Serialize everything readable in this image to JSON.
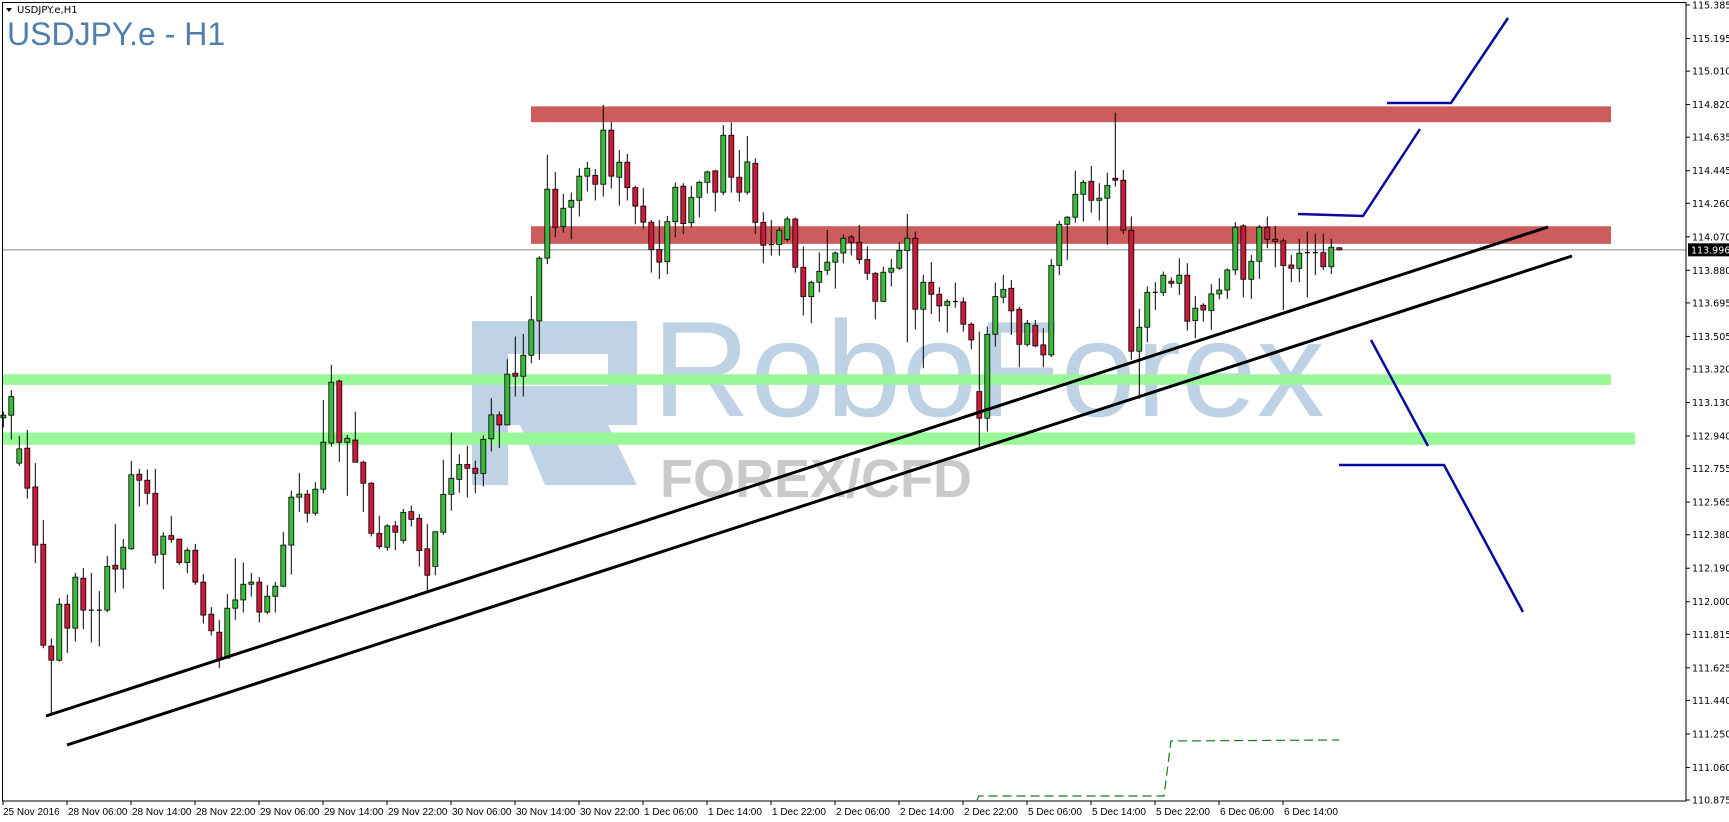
{
  "header": {
    "symbol_label": "USDJPY.e,H1",
    "title": "USDJPY.e - H1"
  },
  "watermark": {
    "brand": "RoboForex",
    "sub": "FOREX/CFD"
  },
  "colors": {
    "bull": "#3cb83c",
    "bear": "#cc1a3a",
    "resistance_zone": "#cd5c5c",
    "support_zone": "#98f898",
    "trendline": "#000000",
    "projection": "#0a0aa0",
    "dashed_indicator": "#1a7a1a",
    "current_price_line": "#7f8a99"
  },
  "chart_data": {
    "type": "candlestick",
    "symbol": "USDJPY.e",
    "timeframe": "H1",
    "current_price": "113.996",
    "y_ticks": [
      "115.385",
      "115.195",
      "115.010",
      "114.820",
      "114.635",
      "114.445",
      "114.260",
      "114.070",
      "113.880",
      "113.695",
      "113.505",
      "113.320",
      "113.130",
      "112.940",
      "112.755",
      "112.565",
      "112.380",
      "112.190",
      "112.000",
      "111.815",
      "111.625",
      "111.440",
      "111.250",
      "111.060",
      "110.875"
    ],
    "ylim": [
      110.875,
      115.385
    ],
    "x_ticks": [
      "25 Nov 2016",
      "28 Nov 06:00",
      "28 Nov 14:00",
      "28 Nov 22:00",
      "29 Nov 06:00",
      "29 Nov 14:00",
      "29 Nov 22:00",
      "30 Nov 06:00",
      "30 Nov 14:00",
      "30 Nov 22:00",
      "1 Dec 06:00",
      "1 Dec 14:00",
      "1 Dec 22:00",
      "2 Dec 06:00",
      "2 Dec 14:00",
      "2 Dec 22:00",
      "5 Dec 06:00",
      "5 Dec 14:00",
      "5 Dec 22:00",
      "6 Dec 06:00",
      "6 Dec 14:00"
    ],
    "zones": [
      {
        "kind": "resistance",
        "from": 114.72,
        "to": 114.81
      },
      {
        "kind": "resistance",
        "from": 114.03,
        "to": 114.13
      },
      {
        "kind": "support",
        "from": 113.23,
        "to": 113.29
      },
      {
        "kind": "support",
        "from": 112.89,
        "to": 112.96
      }
    ],
    "ohlc": [
      [
        113.043,
        113.079,
        112.99,
        113.058
      ],
      [
        113.058,
        113.2,
        112.92,
        113.164
      ],
      [
        112.786,
        112.94,
        112.77,
        112.867
      ],
      [
        112.871,
        112.975,
        112.585,
        112.644
      ],
      [
        112.651,
        112.786,
        112.22,
        112.321
      ],
      [
        112.326,
        112.464,
        111.736,
        111.753
      ],
      [
        111.748,
        111.79,
        111.358,
        111.668
      ],
      [
        111.668,
        112.02,
        111.66,
        111.986
      ],
      [
        111.986,
        112.04,
        111.71,
        111.85
      ],
      [
        111.85,
        112.162,
        111.774,
        112.139
      ],
      [
        112.133,
        112.19,
        111.844,
        111.952
      ],
      [
        111.952,
        112.162,
        111.769,
        111.952
      ],
      [
        111.952,
        112.06,
        111.746,
        111.952
      ],
      [
        111.952,
        112.26,
        111.94,
        112.2
      ],
      [
        112.207,
        112.441,
        112.052,
        112.185
      ],
      [
        112.185,
        112.355,
        112.075,
        112.309
      ],
      [
        112.3,
        112.799,
        112.294,
        112.72
      ],
      [
        112.723,
        112.753,
        112.54,
        112.689
      ],
      [
        112.689,
        112.75,
        112.551,
        112.615
      ],
      [
        112.615,
        112.753,
        112.216,
        112.264
      ],
      [
        112.269,
        112.394,
        112.071,
        112.372
      ],
      [
        112.375,
        112.487,
        112.334,
        112.353
      ],
      [
        112.355,
        112.355,
        112.209,
        112.222
      ],
      [
        112.222,
        112.307,
        112.162,
        112.292
      ],
      [
        112.292,
        112.328,
        112.096,
        112.111
      ],
      [
        112.111,
        112.156,
        111.876,
        111.924
      ],
      [
        111.929,
        111.969,
        111.808,
        111.835
      ],
      [
        111.827,
        111.897,
        111.623,
        111.674
      ],
      [
        111.68,
        112.043,
        111.68,
        111.963
      ],
      [
        111.963,
        112.247,
        111.897,
        112.01
      ],
      [
        112.01,
        112.222,
        111.939,
        112.099
      ],
      [
        112.099,
        112.162,
        112.029,
        112.111
      ],
      [
        112.111,
        112.139,
        111.882,
        111.941
      ],
      [
        111.941,
        112.094,
        111.929,
        112.031
      ],
      [
        112.031,
        112.113,
        111.939,
        112.088
      ],
      [
        112.088,
        112.396,
        112.082,
        112.321
      ],
      [
        112.321,
        112.63,
        112.154,
        112.593
      ],
      [
        112.593,
        112.731,
        112.508,
        112.61
      ],
      [
        112.61,
        112.634,
        112.449,
        112.502
      ],
      [
        112.502,
        112.678,
        112.489,
        112.638
      ],
      [
        112.638,
        113.145,
        112.615,
        112.905
      ],
      [
        112.9,
        113.343,
        112.88,
        113.245
      ],
      [
        113.252,
        113.26,
        112.794,
        112.904
      ],
      [
        112.904,
        112.946,
        112.601,
        112.927
      ],
      [
        112.917,
        113.078,
        112.79,
        112.791
      ],
      [
        112.791,
        112.8,
        112.51,
        112.672
      ],
      [
        112.672,
        112.68,
        112.37,
        112.388
      ],
      [
        112.388,
        112.488,
        112.297,
        112.312
      ],
      [
        112.309,
        112.439,
        112.29,
        112.43
      ],
      [
        112.43,
        112.458,
        112.293,
        112.394
      ],
      [
        112.348,
        112.526,
        112.33,
        112.507
      ],
      [
        112.511,
        112.545,
        112.426,
        112.467
      ],
      [
        112.473,
        112.496,
        112.2,
        112.29
      ],
      [
        112.3,
        112.44,
        112.05,
        112.15
      ],
      [
        112.2,
        112.397,
        112.15,
        112.397
      ],
      [
        112.394,
        112.805,
        112.38,
        112.609
      ],
      [
        112.609,
        112.96,
        112.516,
        112.7
      ],
      [
        112.694,
        112.836,
        112.618,
        112.779
      ],
      [
        112.779,
        112.885,
        112.592,
        112.757
      ],
      [
        112.757,
        112.8,
        112.615,
        112.728
      ],
      [
        112.728,
        112.944,
        112.653,
        112.921
      ],
      [
        112.924,
        113.155,
        112.852,
        113.06
      ],
      [
        113.06,
        113.079,
        112.871,
        113.003
      ],
      [
        113.003,
        113.376,
        113.003,
        113.291
      ],
      [
        113.296,
        113.504,
        113.164,
        113.279
      ],
      [
        113.279,
        113.519,
        113.164,
        113.398
      ],
      [
        113.398,
        113.735,
        113.353,
        113.599
      ],
      [
        113.593,
        113.96,
        113.372,
        113.949
      ],
      [
        113.949,
        114.535,
        113.915,
        114.34
      ],
      [
        114.34,
        114.438,
        114.068,
        114.124
      ],
      [
        114.128,
        114.313,
        114.094,
        114.232
      ],
      [
        114.238,
        114.321,
        114.056,
        114.277
      ],
      [
        114.277,
        114.459,
        114.185,
        114.414
      ],
      [
        114.414,
        114.495,
        114.327,
        114.459
      ],
      [
        114.419,
        114.455,
        114.276,
        114.368
      ],
      [
        114.368,
        114.818,
        114.298,
        114.675
      ],
      [
        114.675,
        114.72,
        114.344,
        114.414
      ],
      [
        114.408,
        114.563,
        114.247,
        114.493
      ],
      [
        114.493,
        114.54,
        114.276,
        114.349
      ],
      [
        114.349,
        114.36,
        114.141,
        114.244
      ],
      [
        114.244,
        114.346,
        114.117,
        114.153
      ],
      [
        114.153,
        114.166,
        113.867,
        113.998
      ],
      [
        113.998,
        114.166,
        113.83,
        113.926
      ],
      [
        113.929,
        114.188,
        113.857,
        114.156
      ],
      [
        114.156,
        114.377,
        114.067,
        114.351
      ],
      [
        114.357,
        114.374,
        114.086,
        114.145
      ],
      [
        114.15,
        114.358,
        114.122,
        114.294
      ],
      [
        114.294,
        114.389,
        114.181,
        114.379
      ],
      [
        114.379,
        114.445,
        114.317,
        114.438
      ],
      [
        114.444,
        114.45,
        114.213,
        114.323
      ],
      [
        114.323,
        114.704,
        114.306,
        114.646
      ],
      [
        114.646,
        114.718,
        114.321,
        114.408
      ],
      [
        114.408,
        114.563,
        114.27,
        114.323
      ],
      [
        114.323,
        114.642,
        114.309,
        114.495
      ],
      [
        114.487,
        114.515,
        114.086,
        114.152
      ],
      [
        114.152,
        114.209,
        113.92,
        114.022
      ],
      [
        114.026,
        114.166,
        113.963,
        114.026
      ],
      [
        114.026,
        114.124,
        113.963,
        114.107
      ],
      [
        114.056,
        114.185,
        114.043,
        114.171
      ],
      [
        114.171,
        114.179,
        113.867,
        113.897
      ],
      [
        113.897,
        114.014,
        113.623,
        113.731
      ],
      [
        113.731,
        113.82,
        113.58,
        113.812
      ],
      [
        113.812,
        113.982,
        113.755,
        113.874
      ],
      [
        113.88,
        114.109,
        113.854,
        113.926
      ],
      [
        113.926,
        113.986,
        113.776,
        113.978
      ],
      [
        113.978,
        114.084,
        113.92,
        114.062
      ],
      [
        114.069,
        114.081,
        113.965,
        114.039
      ],
      [
        114.039,
        114.137,
        113.914,
        113.941
      ],
      [
        113.941,
        114.014,
        113.825,
        113.863
      ],
      [
        113.863,
        113.87,
        113.602,
        113.704
      ],
      [
        113.704,
        113.9,
        113.699,
        113.869
      ],
      [
        113.869,
        113.944,
        113.788,
        113.892
      ],
      [
        113.892,
        114.039,
        113.882,
        113.992
      ],
      [
        113.992,
        114.2,
        113.472,
        114.062
      ],
      [
        114.062,
        114.1,
        113.545,
        113.659
      ],
      [
        113.659,
        113.854,
        113.324,
        113.812
      ],
      [
        113.812,
        113.926,
        113.632,
        113.744
      ],
      [
        113.744,
        113.784,
        113.589,
        113.678
      ],
      [
        113.681,
        113.716,
        113.527,
        113.704
      ],
      [
        113.703,
        113.81,
        113.668,
        113.703
      ],
      [
        113.701,
        113.727,
        113.532,
        113.574
      ],
      [
        113.574,
        113.585,
        113.432,
        113.485
      ],
      [
        113.192,
        113.532,
        112.87,
        113.041
      ],
      [
        113.041,
        113.561,
        112.965,
        113.517
      ],
      [
        113.517,
        113.81,
        113.447,
        113.731
      ],
      [
        113.727,
        113.854,
        113.693,
        113.772
      ],
      [
        113.778,
        113.825,
        113.513,
        113.65
      ],
      [
        113.659,
        113.674,
        113.33,
        113.46
      ],
      [
        113.46,
        113.598,
        113.447,
        113.579
      ],
      [
        113.568,
        113.598,
        113.443,
        113.451
      ],
      [
        113.457,
        113.551,
        113.33,
        113.4
      ],
      [
        113.4,
        113.943,
        113.387,
        113.908
      ],
      [
        113.908,
        114.16,
        113.854,
        114.141
      ],
      [
        114.141,
        114.188,
        113.939,
        114.181
      ],
      [
        114.181,
        114.445,
        114.15,
        114.311
      ],
      [
        114.311,
        114.392,
        114.156,
        114.379
      ],
      [
        114.385,
        114.472,
        114.207,
        114.277
      ],
      [
        114.277,
        114.374,
        114.162,
        114.289
      ],
      [
        114.289,
        114.434,
        114.024,
        114.362
      ],
      [
        114.402,
        114.774,
        114.355,
        114.391
      ],
      [
        114.391,
        114.449,
        114.086,
        114.107
      ],
      [
        114.107,
        114.185,
        113.372,
        113.421
      ],
      [
        113.421,
        113.661,
        113.15,
        113.557
      ],
      [
        113.557,
        113.788,
        113.472,
        113.755
      ],
      [
        113.755,
        113.812,
        113.655,
        113.755
      ],
      [
        113.755,
        113.873,
        113.735,
        113.852
      ],
      [
        113.818,
        113.839,
        113.782,
        113.806
      ],
      [
        113.806,
        113.948,
        113.74,
        113.852
      ],
      [
        113.852,
        113.92,
        113.538,
        113.591
      ],
      [
        113.595,
        113.735,
        113.494,
        113.665
      ],
      [
        113.682,
        113.693,
        113.589,
        113.655
      ],
      [
        113.651,
        113.801,
        113.542,
        113.746
      ],
      [
        113.746,
        113.835,
        113.716,
        113.768
      ],
      [
        113.768,
        113.891,
        113.718,
        113.882
      ],
      [
        113.882,
        114.153,
        113.854,
        114.124
      ],
      [
        114.132,
        114.141,
        113.727,
        113.829
      ],
      [
        113.829,
        113.967,
        113.718,
        113.931
      ],
      [
        113.931,
        114.137,
        113.831,
        114.124
      ],
      [
        114.124,
        114.185,
        114.005,
        114.056
      ],
      [
        114.056,
        114.132,
        113.897,
        114.043
      ],
      [
        114.047,
        114.062,
        113.655,
        113.907
      ],
      [
        113.91,
        113.967,
        113.812,
        113.891
      ],
      [
        113.891,
        114.058,
        113.812,
        113.977
      ],
      [
        113.98,
        114.1,
        113.727,
        113.98
      ],
      [
        113.98,
        114.088,
        113.854,
        113.98
      ],
      [
        113.98,
        114.088,
        113.882,
        113.9
      ],
      [
        113.9,
        114.058,
        113.859,
        114.011
      ],
      [
        114.008,
        114.01,
        113.993,
        113.996
      ]
    ]
  }
}
